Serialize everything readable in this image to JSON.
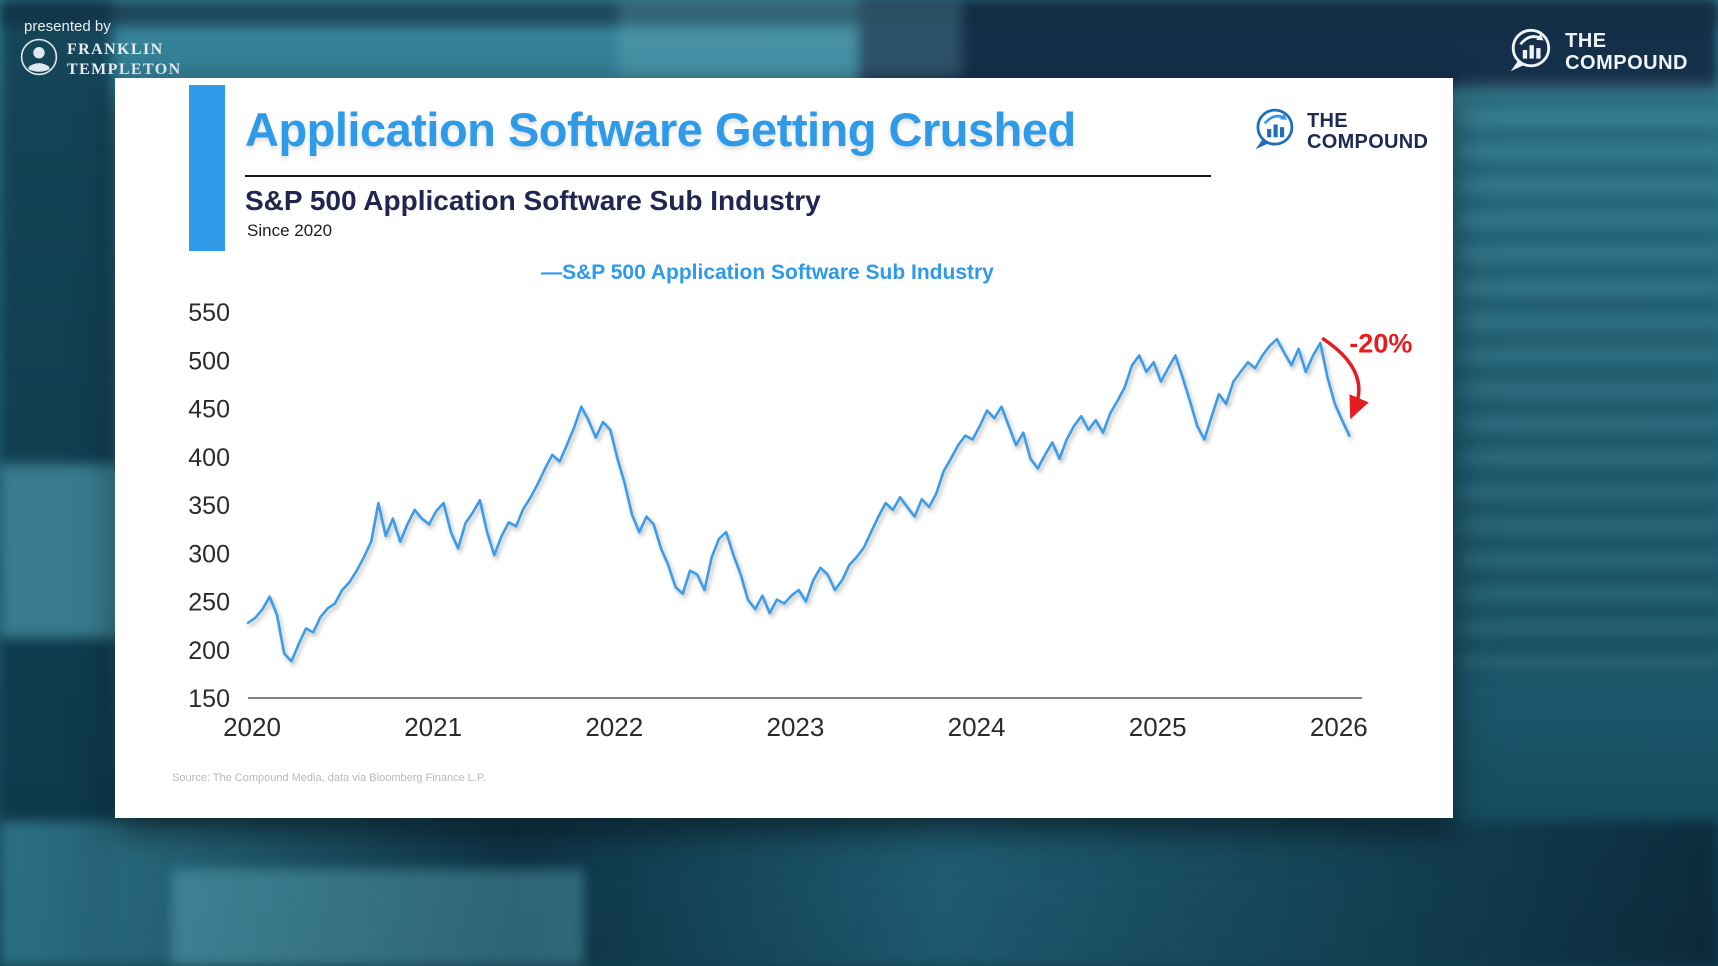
{
  "branding": {
    "presented_by": "presented by",
    "franklin_line1": "FRANKLIN",
    "franklin_line2": "TEMPLETON",
    "compound_line1": "THE",
    "compound_line2": "COMPOUND"
  },
  "card": {
    "title": "Application Software Getting Crushed",
    "subtitle": "S&P 500 Application Software Sub Industry",
    "since": "Since 2020",
    "legend": "—S&P 500 Application Software Sub Industry",
    "source": "Source: The Compound Media, data via Bloomberg Finance L.P.",
    "logo_line1": "THE",
    "logo_line2": "COMPOUND"
  },
  "colors": {
    "title_blue": "#2E9AE8",
    "accent_blue": "#2E9AE8",
    "line_blue": "#3E9CEA",
    "navy": "#1E2A56",
    "annotation_red": "#E41E20",
    "tick_color": "#2b2b2b",
    "source_gray": "#b9b9b9"
  },
  "chart_data": {
    "type": "line",
    "title": "S&P 500 Application Software Sub Industry",
    "subtitle": "Since 2020",
    "xlim": [
      2020,
      2026.15
    ],
    "ylim": [
      150,
      575
    ],
    "x_ticks": [
      2020,
      2021,
      2022,
      2023,
      2024,
      2025,
      2026
    ],
    "y_ticks": [
      150,
      200,
      250,
      300,
      350,
      400,
      450,
      500,
      550
    ],
    "grid": false,
    "legend_position": "top",
    "annotation": {
      "label": "-20%",
      "label_at": [
        2026.08,
        508
      ],
      "arrow_from": [
        2025.93,
        523
      ],
      "arrow_ctrl": [
        2026.2,
        490
      ],
      "arrow_to": [
        2026.11,
        450
      ]
    },
    "series": [
      {
        "name": "S&P 500 Application Software Sub Industry",
        "points": [
          [
            2020.0,
            228
          ],
          [
            2020.04,
            233
          ],
          [
            2020.08,
            242
          ],
          [
            2020.12,
            255
          ],
          [
            2020.16,
            236
          ],
          [
            2020.2,
            196
          ],
          [
            2020.24,
            188
          ],
          [
            2020.28,
            206
          ],
          [
            2020.32,
            222
          ],
          [
            2020.36,
            218
          ],
          [
            2020.4,
            234
          ],
          [
            2020.44,
            243
          ],
          [
            2020.48,
            248
          ],
          [
            2020.52,
            262
          ],
          [
            2020.56,
            270
          ],
          [
            2020.6,
            282
          ],
          [
            2020.64,
            296
          ],
          [
            2020.68,
            312
          ],
          [
            2020.72,
            352
          ],
          [
            2020.76,
            318
          ],
          [
            2020.8,
            336
          ],
          [
            2020.84,
            312
          ],
          [
            2020.88,
            330
          ],
          [
            2020.92,
            345
          ],
          [
            2020.96,
            336
          ],
          [
            2021.0,
            330
          ],
          [
            2021.04,
            344
          ],
          [
            2021.08,
            352
          ],
          [
            2021.12,
            322
          ],
          [
            2021.16,
            305
          ],
          [
            2021.2,
            331
          ],
          [
            2021.24,
            342
          ],
          [
            2021.28,
            355
          ],
          [
            2021.32,
            322
          ],
          [
            2021.36,
            298
          ],
          [
            2021.4,
            318
          ],
          [
            2021.44,
            332
          ],
          [
            2021.48,
            328
          ],
          [
            2021.52,
            346
          ],
          [
            2021.56,
            358
          ],
          [
            2021.6,
            372
          ],
          [
            2021.64,
            388
          ],
          [
            2021.68,
            402
          ],
          [
            2021.72,
            395
          ],
          [
            2021.76,
            412
          ],
          [
            2021.8,
            430
          ],
          [
            2021.84,
            452
          ],
          [
            2021.88,
            438
          ],
          [
            2021.92,
            420
          ],
          [
            2021.96,
            436
          ],
          [
            2022.0,
            428
          ],
          [
            2022.04,
            398
          ],
          [
            2022.08,
            372
          ],
          [
            2022.12,
            340
          ],
          [
            2022.16,
            322
          ],
          [
            2022.2,
            338
          ],
          [
            2022.24,
            330
          ],
          [
            2022.28,
            305
          ],
          [
            2022.32,
            288
          ],
          [
            2022.36,
            265
          ],
          [
            2022.4,
            258
          ],
          [
            2022.44,
            282
          ],
          [
            2022.48,
            278
          ],
          [
            2022.52,
            262
          ],
          [
            2022.56,
            296
          ],
          [
            2022.6,
            315
          ],
          [
            2022.64,
            322
          ],
          [
            2022.68,
            298
          ],
          [
            2022.72,
            278
          ],
          [
            2022.76,
            252
          ],
          [
            2022.8,
            242
          ],
          [
            2022.84,
            256
          ],
          [
            2022.88,
            238
          ],
          [
            2022.92,
            252
          ],
          [
            2022.96,
            248
          ],
          [
            2023.0,
            256
          ],
          [
            2023.04,
            262
          ],
          [
            2023.08,
            250
          ],
          [
            2023.12,
            272
          ],
          [
            2023.16,
            285
          ],
          [
            2023.2,
            278
          ],
          [
            2023.24,
            262
          ],
          [
            2023.28,
            272
          ],
          [
            2023.32,
            288
          ],
          [
            2023.36,
            296
          ],
          [
            2023.4,
            306
          ],
          [
            2023.44,
            322
          ],
          [
            2023.48,
            338
          ],
          [
            2023.52,
            352
          ],
          [
            2023.56,
            345
          ],
          [
            2023.6,
            358
          ],
          [
            2023.64,
            348
          ],
          [
            2023.68,
            338
          ],
          [
            2023.72,
            356
          ],
          [
            2023.76,
            348
          ],
          [
            2023.8,
            362
          ],
          [
            2023.84,
            385
          ],
          [
            2023.88,
            398
          ],
          [
            2023.92,
            412
          ],
          [
            2023.96,
            422
          ],
          [
            2024.0,
            418
          ],
          [
            2024.04,
            432
          ],
          [
            2024.08,
            448
          ],
          [
            2024.12,
            440
          ],
          [
            2024.16,
            452
          ],
          [
            2024.2,
            432
          ],
          [
            2024.24,
            412
          ],
          [
            2024.28,
            425
          ],
          [
            2024.32,
            398
          ],
          [
            2024.36,
            388
          ],
          [
            2024.4,
            402
          ],
          [
            2024.44,
            415
          ],
          [
            2024.48,
            398
          ],
          [
            2024.52,
            418
          ],
          [
            2024.56,
            432
          ],
          [
            2024.6,
            442
          ],
          [
            2024.64,
            428
          ],
          [
            2024.68,
            438
          ],
          [
            2024.72,
            425
          ],
          [
            2024.76,
            445
          ],
          [
            2024.8,
            458
          ],
          [
            2024.84,
            472
          ],
          [
            2024.88,
            495
          ],
          [
            2024.92,
            505
          ],
          [
            2024.96,
            488
          ],
          [
            2025.0,
            498
          ],
          [
            2025.04,
            478
          ],
          [
            2025.08,
            492
          ],
          [
            2025.12,
            505
          ],
          [
            2025.16,
            482
          ],
          [
            2025.2,
            458
          ],
          [
            2025.24,
            432
          ],
          [
            2025.28,
            418
          ],
          [
            2025.32,
            442
          ],
          [
            2025.36,
            465
          ],
          [
            2025.4,
            455
          ],
          [
            2025.44,
            478
          ],
          [
            2025.48,
            488
          ],
          [
            2025.52,
            498
          ],
          [
            2025.56,
            492
          ],
          [
            2025.6,
            505
          ],
          [
            2025.64,
            515
          ],
          [
            2025.68,
            522
          ],
          [
            2025.72,
            508
          ],
          [
            2025.76,
            495
          ],
          [
            2025.8,
            512
          ],
          [
            2025.84,
            488
          ],
          [
            2025.88,
            505
          ],
          [
            2025.92,
            518
          ],
          [
            2025.96,
            482
          ],
          [
            2026.0,
            455
          ],
          [
            2026.04,
            438
          ],
          [
            2026.08,
            422
          ]
        ]
      }
    ]
  }
}
